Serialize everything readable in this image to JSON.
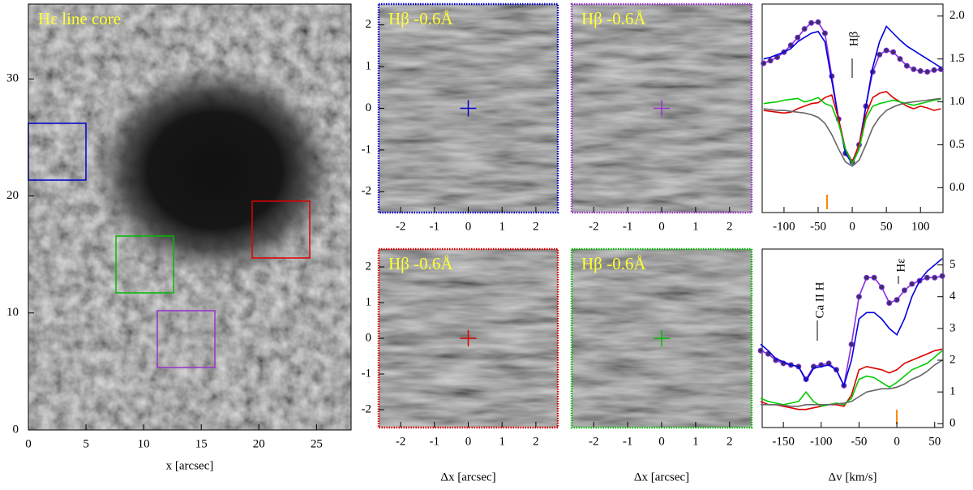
{
  "chart_data": [
    {
      "type": "image",
      "title": "Hε line core",
      "xlabel": "x [arcsec]",
      "xlim": [
        0,
        28
      ],
      "ylim": [
        0,
        36.4
      ],
      "xticks": [
        0,
        5,
        10,
        15,
        20,
        25
      ],
      "yticks": [
        0,
        10,
        20,
        30
      ],
      "color": "#000000",
      "sunspot": true
    },
    {
      "type": "image",
      "title": "Hβ -0.6Å",
      "xlim": [
        -2.65,
        2.65
      ],
      "ylim": [
        -2.5,
        2.5
      ],
      "xticks": [
        -2,
        -1,
        0,
        1,
        2
      ],
      "yticks": [
        -2,
        -1,
        0,
        1,
        2
      ],
      "color": "#0000cc"
    },
    {
      "type": "image",
      "title": "Hβ -0.6Å",
      "xlim": [
        -2.65,
        2.65
      ],
      "ylim": [
        -2.5,
        2.5
      ],
      "xticks": [
        -2,
        -1,
        0,
        1,
        2
      ],
      "color": "#9933cc"
    },
    {
      "type": "image",
      "title": "Hβ -0.6Å",
      "xlabel": "Δx [arcsec]",
      "xlim": [
        -2.65,
        2.65
      ],
      "ylim": [
        -2.5,
        2.5
      ],
      "xticks": [
        -2,
        -1,
        0,
        1,
        2
      ],
      "yticks": [
        -2,
        -1,
        0,
        1,
        2
      ],
      "color": "#dd0000"
    },
    {
      "type": "image",
      "title": "Hβ -0.6Å",
      "xlabel": "Δx [arcsec]",
      "xlim": [
        -2.65,
        2.65
      ],
      "ylim": [
        -2.5,
        2.5
      ],
      "xticks": [
        -2,
        -1,
        0,
        1,
        2
      ],
      "color": "#00bb00"
    },
    {
      "type": "line",
      "annotations": [
        "Hβ"
      ],
      "xlim": [
        -132,
        133
      ],
      "ylim": [
        -0.29,
        2.14
      ],
      "xticks": [
        -100,
        -50,
        0,
        50,
        100
      ],
      "yticks": [
        {
          "value": 0,
          "label": "0.0"
        },
        0.5,
        {
          "value": 1,
          "label": "1.0"
        },
        1.5,
        {
          "value": 2,
          "label": "2.0"
        }
      ],
      "x": [
        -130,
        -120,
        -110,
        -100,
        -90,
        -80,
        -70,
        -60,
        -50,
        -40,
        -30,
        -20,
        -10,
        0,
        10,
        20,
        30,
        40,
        50,
        60,
        70,
        80,
        90,
        100,
        110,
        120,
        130
      ],
      "series": [
        {
          "color": "#8a2be2",
          "marker": "o",
          "values": [
            1.45,
            1.48,
            1.52,
            1.58,
            1.66,
            1.75,
            1.85,
            1.92,
            1.93,
            1.8,
            1.3,
            0.8,
            0.4,
            0.3,
            0.5,
            0.95,
            1.35,
            1.55,
            1.6,
            1.58,
            1.5,
            1.42,
            1.38,
            1.36,
            1.35,
            1.37,
            1.38
          ]
        },
        {
          "color": "#0000dd",
          "values": [
            1.5,
            1.52,
            1.55,
            1.58,
            1.62,
            1.7,
            1.75,
            1.8,
            1.82,
            1.7,
            1.25,
            0.8,
            0.4,
            0.28,
            0.45,
            0.95,
            1.4,
            1.7,
            1.88,
            1.8,
            1.72,
            1.65,
            1.6,
            1.55,
            1.5,
            1.45,
            1.4
          ]
        },
        {
          "color": "#dd0000",
          "values": [
            0.9,
            0.89,
            0.88,
            0.87,
            0.88,
            0.92,
            0.95,
            0.98,
            0.99,
            1.05,
            1.08,
            0.8,
            0.45,
            0.3,
            0.5,
            0.85,
            1.05,
            1.1,
            1.12,
            1.05,
            1.0,
            0.95,
            0.92,
            0.95,
            0.93,
            0.9,
            0.92
          ]
        },
        {
          "color": "#00cc00",
          "values": [
            0.98,
            0.99,
            1.0,
            1.02,
            1.03,
            1.04,
            1.0,
            1.02,
            1.05,
            0.98,
            0.95,
            0.75,
            0.45,
            0.28,
            0.45,
            0.8,
            0.95,
            0.98,
            1.0,
            1.02,
            1.0,
            0.98,
            0.96,
            0.98,
            1.0,
            1.02,
            1.03
          ]
        },
        {
          "color": "#666666",
          "values": [
            0.92,
            0.91,
            0.9,
            0.9,
            0.89,
            0.88,
            0.87,
            0.85,
            0.82,
            0.75,
            0.62,
            0.45,
            0.3,
            0.25,
            0.32,
            0.5,
            0.7,
            0.82,
            0.9,
            0.94,
            0.97,
            0.99,
            1.0,
            1.01,
            1.02,
            1.03,
            1.04
          ]
        }
      ]
    },
    {
      "type": "line",
      "xlabel": "Δv [km/s]",
      "annotations": [
        "Ca II H",
        "Hε"
      ],
      "xlim": [
        -178,
        61
      ],
      "ylim": [
        -0.12,
        5.5
      ],
      "xticks": [
        -150,
        -100,
        -50,
        0,
        50
      ],
      "yticks": [
        0,
        1,
        2,
        3,
        4,
        5
      ],
      "x": [
        -180,
        -170,
        -160,
        -150,
        -140,
        -130,
        -120,
        -110,
        -100,
        -90,
        -80,
        -70,
        -60,
        -50,
        -40,
        -30,
        -20,
        -10,
        0,
        10,
        20,
        30,
        40,
        50,
        60
      ],
      "series": [
        {
          "color": "#8a2be2",
          "marker": "o",
          "values": [
            2.3,
            2.2,
            2.0,
            1.9,
            1.85,
            1.8,
            1.4,
            1.8,
            1.85,
            1.9,
            1.7,
            1.2,
            2.5,
            4.0,
            4.6,
            4.6,
            4.3,
            3.8,
            3.9,
            4.2,
            4.4,
            4.5,
            4.6,
            4.6,
            4.65
          ]
        },
        {
          "color": "#0000dd",
          "values": [
            2.5,
            2.3,
            2.05,
            1.95,
            1.85,
            1.8,
            1.35,
            1.75,
            1.8,
            1.85,
            1.7,
            1.2,
            2.0,
            3.3,
            3.5,
            3.5,
            3.3,
            3.0,
            2.8,
            3.3,
            4.0,
            4.5,
            4.8,
            5.0,
            5.2
          ]
        },
        {
          "color": "#dd0000",
          "values": [
            0.7,
            0.6,
            0.6,
            0.55,
            0.5,
            0.45,
            0.45,
            0.5,
            0.55,
            0.6,
            0.6,
            0.55,
            0.9,
            1.7,
            1.8,
            1.75,
            1.7,
            1.6,
            1.7,
            1.9,
            2.0,
            2.1,
            2.2,
            2.3,
            2.35
          ]
        },
        {
          "color": "#00cc00",
          "values": [
            0.8,
            0.7,
            0.65,
            0.6,
            0.65,
            0.7,
            1.0,
            0.7,
            0.55,
            0.6,
            0.65,
            0.6,
            0.8,
            1.4,
            1.5,
            1.45,
            1.3,
            1.15,
            1.3,
            1.5,
            1.7,
            1.8,
            1.9,
            2.1,
            2.3
          ]
        },
        {
          "color": "#666666",
          "values": [
            0.6,
            0.6,
            0.6,
            0.58,
            0.55,
            0.55,
            0.6,
            0.6,
            0.6,
            0.6,
            0.62,
            0.65,
            0.7,
            0.85,
            1.0,
            1.05,
            1.1,
            1.1,
            1.15,
            1.25,
            1.4,
            1.5,
            1.65,
            1.85,
            2.0
          ]
        }
      ]
    }
  ]
}
